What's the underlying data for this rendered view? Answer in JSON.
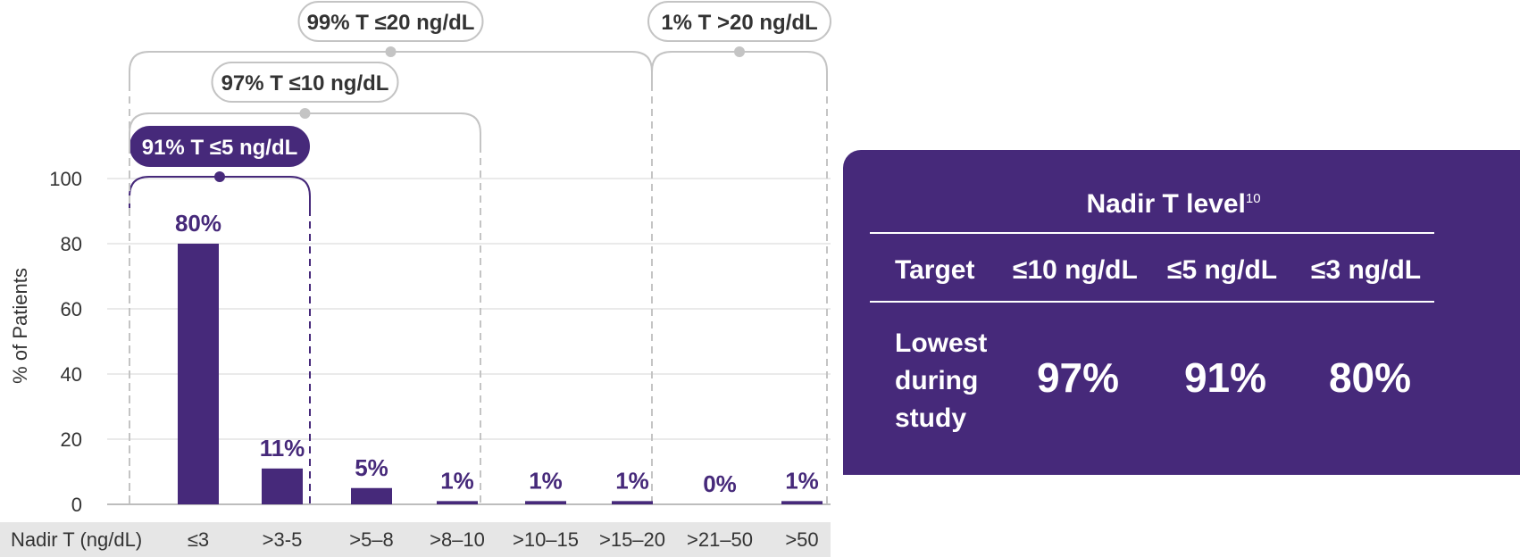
{
  "chart_data": {
    "type": "bar",
    "ylabel": "% of Patients",
    "xlabel": "Nadir T (ng/dL)",
    "ylim": [
      0,
      100
    ],
    "yticks": [
      0,
      20,
      40,
      60,
      80,
      100
    ],
    "categories": [
      "≤3",
      ">3-5",
      ">5–8",
      ">8–10",
      ">10–15",
      ">15–20",
      ">21–50",
      ">50"
    ],
    "values": [
      80,
      11,
      5,
      1,
      1,
      1,
      0,
      1
    ],
    "value_labels": [
      "80%",
      "11%",
      "5%",
      "1%",
      "1%",
      "1%",
      "0%",
      "1%"
    ],
    "grid": true,
    "bar_color": "#46297a",
    "annotations": [
      {
        "text": "91% T ≤5 ng/dL",
        "span": [
          0,
          1
        ],
        "style": "filled"
      },
      {
        "text": "97% T ≤10 ng/dL",
        "span": [
          0,
          3
        ],
        "style": "outline"
      },
      {
        "text": "99% T ≤20 ng/dL",
        "span": [
          0,
          5
        ],
        "style": "outline"
      },
      {
        "text": "1% T >20 ng/dL",
        "span": [
          6,
          7
        ],
        "style": "outline"
      }
    ]
  },
  "nadir_table": {
    "title": "Nadir T level",
    "title_ref": "10",
    "target_label": "Target",
    "targets": [
      "≤10 ng/dL",
      "≤5 ng/dL",
      "≤3 ng/dL"
    ],
    "row_label_lines": [
      "Lowest",
      "during",
      "study"
    ],
    "row_values": [
      "97%",
      "91%",
      "80%"
    ]
  },
  "colors": {
    "accent": "#46297a",
    "gray_line": "#c4c4c4",
    "axis_band": "#e6e6e6"
  }
}
